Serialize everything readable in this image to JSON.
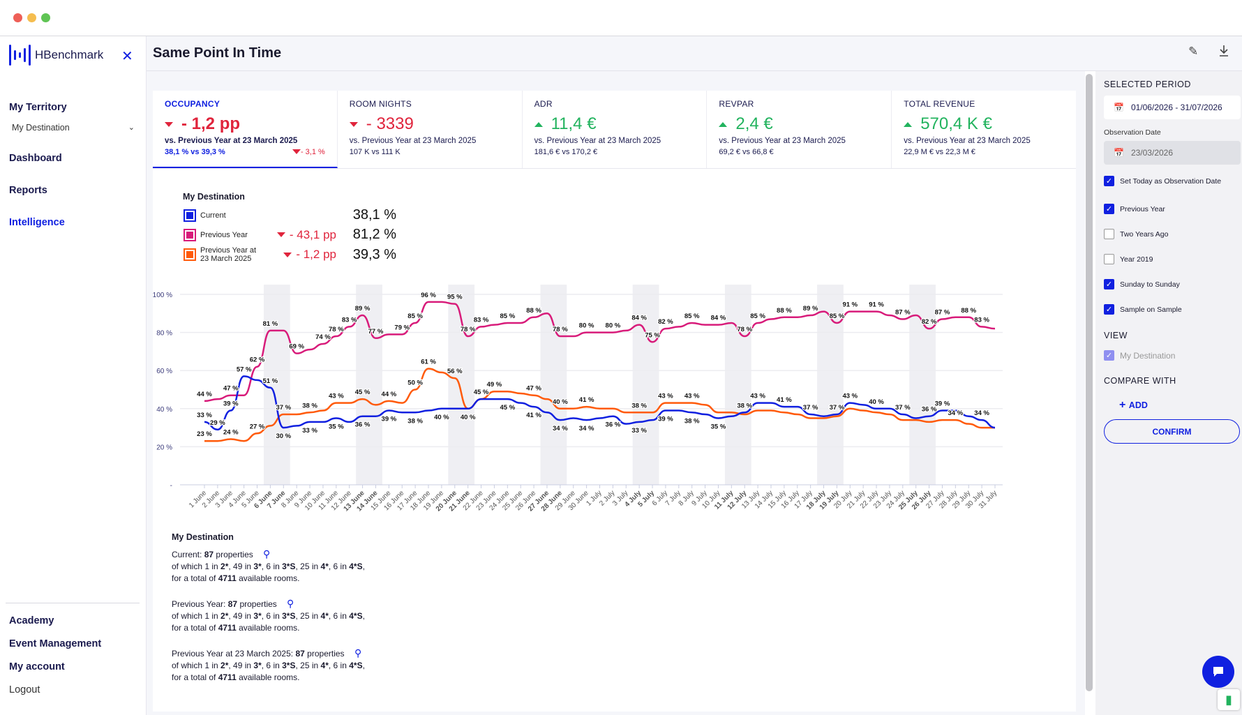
{
  "app": {
    "brand": "HBenchmark",
    "page_title": "Same Point In Time"
  },
  "sidebar": {
    "territory_heading": "My Territory",
    "territory_select": "My Destination",
    "items": [
      {
        "label": "Dashboard"
      },
      {
        "label": "Reports"
      },
      {
        "label": "Intelligence"
      }
    ],
    "bottom_items": [
      {
        "label": "Academy"
      },
      {
        "label": "Event Management"
      },
      {
        "label": "My account"
      },
      {
        "label": "Logout"
      }
    ]
  },
  "kpis": [
    {
      "title": "OCCUPANCY",
      "value": "- 1,2 pp",
      "trend": "down",
      "subtitle": "vs. Previous Year at 23 March 2025",
      "detail": "38,1 % vs 39,3 %",
      "delta": "- 3,1 %"
    },
    {
      "title": "ROOM NIGHTS",
      "value": "- 3339",
      "trend": "down",
      "subtitle": "vs. Previous Year at 23 March 2025",
      "detail": "107 K vs 111 K"
    },
    {
      "title": "ADR",
      "value": "11,4 €",
      "trend": "up",
      "subtitle": "vs. Previous Year at 23 March 2025",
      "detail": "181,6 € vs 170,2 €"
    },
    {
      "title": "REVPAR",
      "value": "2,4 €",
      "trend": "up",
      "subtitle": "vs. Previous Year at 23 March 2025",
      "detail": "69,2 € vs 66,8 €"
    },
    {
      "title": "TOTAL REVENUE",
      "value": "570,4 K €",
      "trend": "up",
      "subtitle": "vs. Previous Year at 23 March 2025",
      "detail": "22,9 M € vs 22,3 M €"
    }
  ],
  "legend": {
    "title": "My Destination",
    "rows": [
      {
        "label": "Current",
        "delta": "",
        "value": "38,1 %",
        "color": "#1020e0"
      },
      {
        "label": "Previous Year",
        "delta": "- 43,1 pp",
        "value": "81,2 %",
        "color": "#d81b7a"
      },
      {
        "label": "Previous Year at 23 March 2025",
        "delta": "- 1,2 pp",
        "value": "39,3 %",
        "color": "#ff5a0a"
      }
    ]
  },
  "chart_data": {
    "type": "line",
    "ylim": [
      0,
      100
    ],
    "yticks": [
      {
        "v": 0,
        "label": "-"
      },
      {
        "v": 20,
        "label": "20 %"
      },
      {
        "v": 40,
        "label": "40 %"
      },
      {
        "v": 60,
        "label": "60 %"
      },
      {
        "v": 80,
        "label": "80 %"
      },
      {
        "v": 100,
        "label": "100 %"
      }
    ],
    "categories": [
      "1 June",
      "2 June",
      "3 June",
      "4 June",
      "5 June",
      "6 June",
      "7 June",
      "8 June",
      "9 June",
      "10 June",
      "11 June",
      "12 June",
      "13 June",
      "14 June",
      "15 June",
      "16 June",
      "17 June",
      "18 June",
      "19 June",
      "20 June",
      "21 June",
      "22 June",
      "23 June",
      "24 June",
      "25 June",
      "26 June",
      "27 June",
      "28 June",
      "29 June",
      "30 June",
      "1 July",
      "2 July",
      "3 July",
      "4 July",
      "5 July",
      "6 July",
      "7 July",
      "8 July",
      "9 July",
      "10 July",
      "11 July",
      "12 July",
      "13 July",
      "14 July",
      "15 July",
      "16 July",
      "17 July",
      "18 July",
      "19 July",
      "20 July",
      "21 July",
      "22 July",
      "23 July",
      "24 July",
      "25 July",
      "26 July",
      "27 July",
      "28 July",
      "29 July",
      "30 July",
      "31 July"
    ],
    "weekend_indices": [
      5,
      6,
      12,
      13,
      19,
      20,
      26,
      27,
      33,
      34,
      40,
      41,
      47,
      48,
      54,
      55
    ],
    "series": [
      {
        "name": "Previous Year",
        "color": "#d81b7a",
        "values": [
          44,
          45,
          47,
          47,
          62,
          81,
          81,
          69,
          71,
          74,
          78,
          83,
          89,
          77,
          79,
          79,
          85,
          96,
          96,
          95,
          78,
          83,
          84,
          85,
          85,
          88,
          90,
          78,
          78,
          80,
          80,
          80,
          81,
          84,
          75,
          82,
          83,
          85,
          84,
          84,
          85,
          78,
          85,
          87,
          88,
          88,
          89,
          91,
          85,
          91,
          91,
          91,
          89,
          87,
          89,
          82,
          87,
          88,
          88,
          83,
          82
        ],
        "labeled": [
          0,
          2,
          4,
          5,
          7,
          9,
          10,
          11,
          12,
          13,
          15,
          16,
          17,
          19,
          20,
          21,
          23,
          25,
          27,
          29,
          31,
          33,
          34,
          35,
          37,
          39,
          41,
          42,
          44,
          46,
          48,
          49,
          51,
          53,
          55,
          56,
          58,
          59
        ]
      },
      {
        "name": "Previous Year at 23 March 2025",
        "color": "#ff5a0a",
        "values": [
          23,
          23,
          24,
          23,
          27,
          31,
          37,
          37,
          38,
          39,
          43,
          43,
          45,
          42,
          44,
          43,
          50,
          61,
          59,
          56,
          40,
          45,
          49,
          49,
          48,
          47,
          45,
          40,
          40,
          41,
          40,
          40,
          38,
          38,
          38,
          43,
          43,
          43,
          42,
          38,
          38,
          37,
          39,
          39,
          38,
          37,
          35,
          35,
          36,
          40,
          39,
          38,
          37,
          34,
          34,
          33,
          34,
          34,
          32,
          30,
          30
        ],
        "labeled": [
          0,
          2,
          4,
          6,
          8,
          10,
          12,
          14,
          16,
          17,
          19,
          21,
          22,
          25,
          27,
          29,
          33,
          35,
          37,
          57
        ]
      },
      {
        "name": "Current",
        "color": "#1020e0",
        "values": [
          33,
          29,
          39,
          57,
          55,
          51,
          30,
          31,
          33,
          33,
          35,
          33,
          36,
          36,
          39,
          38,
          38,
          39,
          40,
          40,
          40,
          45,
          45,
          45,
          43,
          41,
          38,
          34,
          35,
          34,
          35,
          36,
          32,
          33,
          34,
          39,
          39,
          38,
          37,
          35,
          36,
          38,
          43,
          43,
          41,
          41,
          37,
          36,
          37,
          43,
          42,
          40,
          40,
          37,
          35,
          36,
          39,
          39,
          36,
          34,
          30
        ],
        "labeled": [
          0,
          1,
          2,
          3,
          5,
          6,
          8,
          10,
          12,
          14,
          16,
          18,
          20,
          23,
          25,
          27,
          29,
          31,
          33,
          35,
          37,
          39,
          41,
          42,
          44,
          46,
          48,
          49,
          51,
          53,
          55,
          56,
          59
        ]
      }
    ]
  },
  "properties": {
    "title": "My Destination",
    "blocks": [
      {
        "label": "Current:",
        "count": "87",
        "word": "properties",
        "prefix": "of which ",
        "breakdown": [
          [
            "1 in ",
            "2*"
          ],
          [
            ", 49 in ",
            "3*"
          ],
          [
            ", 6 in ",
            "3*S"
          ],
          [
            ", 25 in ",
            "4*"
          ],
          [
            ", 6 in ",
            "4*S"
          ]
        ],
        "total_prefix": "for a total of ",
        "rooms": "4711",
        "total_suffix": " available rooms."
      },
      {
        "label": "Previous Year:",
        "count": "87",
        "word": "properties",
        "prefix": "of which ",
        "breakdown": [
          [
            "1 in ",
            "2*"
          ],
          [
            ", 49 in ",
            "3*"
          ],
          [
            ", 6 in ",
            "3*S"
          ],
          [
            ", 25 in ",
            "4*"
          ],
          [
            ", 6 in ",
            "4*S"
          ]
        ],
        "total_prefix": "for a total of ",
        "rooms": "4711",
        "total_suffix": " available rooms."
      },
      {
        "label": "Previous Year at 23 March 2025:",
        "count": "87",
        "word": "properties",
        "prefix": "of which ",
        "breakdown": [
          [
            "1 in ",
            "2*"
          ],
          [
            ", 49 in ",
            "3*"
          ],
          [
            ", 6 in ",
            "3*S"
          ],
          [
            ", 25 in ",
            "4*"
          ],
          [
            ", 6 in ",
            "4*S"
          ]
        ],
        "total_prefix": "for a total of ",
        "rooms": "4711",
        "total_suffix": " available rooms."
      }
    ]
  },
  "right_panel": {
    "selected_period_label": "SELECTED PERIOD",
    "period": "01/06/2026 - 31/07/2026",
    "observation_label": "Observation Date",
    "observation_date": "23/03/2026",
    "options": [
      {
        "label": "Set Today as Observation Date",
        "checked": true
      },
      {
        "label": "Previous Year",
        "checked": true
      },
      {
        "label": "Two Years Ago",
        "checked": false
      },
      {
        "label": "Year 2019",
        "checked": false
      },
      {
        "label": "Sunday to Sunday",
        "checked": true
      },
      {
        "label": "Sample on Sample",
        "checked": true
      }
    ],
    "view_label": "VIEW",
    "view_item": "My Destination",
    "compare_label": "COMPARE WITH",
    "add_label": "ADD",
    "confirm_label": "CONFIRM"
  }
}
